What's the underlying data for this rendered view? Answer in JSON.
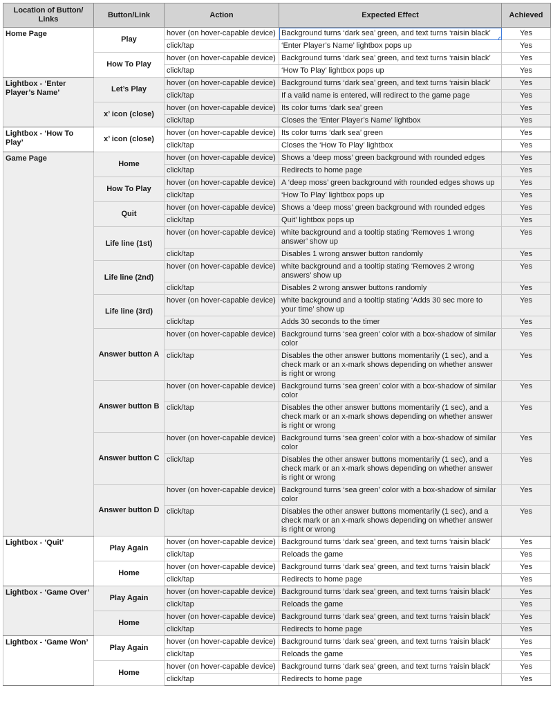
{
  "headers": [
    "Location of Button/ Links",
    "Button/Link",
    "Action",
    "Expected Effect",
    "Achieved"
  ],
  "groups": [
    {
      "location": "Home Page",
      "buttons": [
        {
          "name": "Play",
          "rows": [
            {
              "action": "hover (on hover-capable device)",
              "effect": "Background turns ‘dark sea’ green, and text turns ‘raisin black’",
              "achieved": "Yes"
            },
            {
              "action": "click/tap",
              "effect": "‘Enter Player’s Name’ lightbox pops up",
              "achieved": "Yes"
            }
          ]
        },
        {
          "name": "How To Play",
          "rows": [
            {
              "action": "hover (on hover-capable device)",
              "effect": "Background turns ‘dark sea’ green, and text turns ‘raisin black’",
              "achieved": "Yes"
            },
            {
              "action": "click/tap",
              "effect": "‘How To Play’ lightbox pops up",
              "achieved": "Yes"
            }
          ]
        }
      ]
    },
    {
      "location": "Lightbox - ‘Enter Player’s Name’",
      "buttons": [
        {
          "name": "Let’s Play",
          "rows": [
            {
              "action": "hover (on hover-capable device)",
              "effect": "Background turns ‘dark sea’ green, and text turns ‘raisin black’",
              "achieved": "Yes"
            },
            {
              "action": "click/tap",
              "effect": "If a valid name is entered, will redirect to the game page",
              "achieved": "Yes"
            }
          ]
        },
        {
          "name": "x’ icon (close)",
          "rows": [
            {
              "action": "hover (on hover-capable device)",
              "effect": "Its color turns ‘dark sea’ green",
              "achieved": "Yes"
            },
            {
              "action": "click/tap",
              "effect": "Closes the ‘Enter Player’s Name’ lightbox",
              "achieved": "Yes"
            }
          ]
        }
      ]
    },
    {
      "location": "Lightbox - ‘How To Play’",
      "buttons": [
        {
          "name": "x’ icon (close)",
          "rows": [
            {
              "action": "hover (on hover-capable device)",
              "effect": "Its color turns ‘dark sea’ green",
              "achieved": "Yes"
            },
            {
              "action": "click/tap",
              "effect": "Closes the ‘How To Play’ lightbox",
              "achieved": "Yes"
            }
          ]
        }
      ]
    },
    {
      "location": "Game Page",
      "buttons": [
        {
          "name": "Home",
          "rows": [
            {
              "action": "hover (on hover-capable device)",
              "effect": "Shows a ‘deep moss’ green background with rounded edges",
              "achieved": "Yes"
            },
            {
              "action": "click/tap",
              "effect": "Redirects to home page",
              "achieved": "Yes"
            }
          ]
        },
        {
          "name": "How To Play",
          "rows": [
            {
              "action": "hover (on hover-capable device)",
              "effect": "A ‘deep moss’ green background with rounded edges shows up",
              "achieved": "Yes"
            },
            {
              "action": "click/tap",
              "effect": "‘How To Play’ lightbox pops up",
              "achieved": "Yes"
            }
          ]
        },
        {
          "name": "Quit",
          "rows": [
            {
              "action": "hover (on hover-capable device)",
              "effect": "Shows a ‘deep moss’ green background with rounded edges",
              "achieved": "Yes"
            },
            {
              "action": "click/tap",
              "effect": "Quit’ lightbox pops up",
              "achieved": "Yes"
            }
          ]
        },
        {
          "name": "Life line (1st)",
          "rows": [
            {
              "action": "hover (on hover-capable device)",
              "effect": "white background and a tooltip stating ‘Removes 1 wrong answer’ show up",
              "achieved": "Yes"
            },
            {
              "action": "click/tap",
              "effect": "Disables 1 wrong answer button randomly",
              "achieved": "Yes"
            }
          ]
        },
        {
          "name": "Life line (2nd)",
          "rows": [
            {
              "action": "hover (on hover-capable device)",
              "effect": "white background and a tooltip stating ‘Removes 2 wrong answers’ show up",
              "achieved": "Yes"
            },
            {
              "action": "click/tap",
              "effect": "Disables 2 wrong answer buttons randomly",
              "achieved": "Yes"
            }
          ]
        },
        {
          "name": "Life line (3rd)",
          "rows": [
            {
              "action": "hover (on hover-capable device)",
              "effect": "white background and a tooltip stating ‘Adds 30 sec more to your time’ show up",
              "achieved": "Yes"
            },
            {
              "action": "click/tap",
              "effect": "Adds 30 seconds to the timer",
              "achieved": "Yes"
            }
          ]
        },
        {
          "name": "Answer button A",
          "rows": [
            {
              "action": "hover (on hover-capable device)",
              "effect": "Background turns ‘sea green’ color with a box-shadow of similar color",
              "achieved": "Yes"
            },
            {
              "action": "click/tap",
              "effect": "Disables the other answer buttons momentarily (1 sec), and a check mark or an x-mark shows depending on whether answer is right or wrong",
              "achieved": "Yes"
            }
          ]
        },
        {
          "name": "Answer button B",
          "rows": [
            {
              "action": "hover (on hover-capable device)",
              "effect": "Background turns ‘sea green’ color with a box-shadow of similar color",
              "achieved": "Yes"
            },
            {
              "action": "click/tap",
              "effect": "Disables the other answer buttons momentarily (1 sec), and a check mark or an x-mark shows depending on whether answer is right or wrong",
              "achieved": "Yes"
            }
          ]
        },
        {
          "name": "Answer button C",
          "rows": [
            {
              "action": "hover (on hover-capable device)",
              "effect": "Background turns ‘sea green’ color with a box-shadow of similar color",
              "achieved": "Yes"
            },
            {
              "action": "click/tap",
              "effect": "Disables the other answer buttons momentarily (1 sec), and a check mark or an x-mark shows depending on whether answer is right or wrong",
              "achieved": "Yes"
            }
          ]
        },
        {
          "name": "Answer button D",
          "rows": [
            {
              "action": "hover (on hover-capable device)",
              "effect": "Background turns ‘sea green’ color with a box-shadow of similar color",
              "achieved": "Yes"
            },
            {
              "action": "click/tap",
              "effect": "Disables the other answer buttons momentarily (1 sec), and a check mark or an x-mark shows depending on whether answer is right or wrong",
              "achieved": "Yes"
            }
          ]
        }
      ]
    },
    {
      "location": "Lightbox - ‘Quit’",
      "buttons": [
        {
          "name": "Play Again",
          "rows": [
            {
              "action": "hover (on hover-capable device)",
              "effect": "Background turns ‘dark sea’ green, and text turns ‘raisin black’",
              "achieved": "Yes"
            },
            {
              "action": "click/tap",
              "effect": "Reloads the game",
              "achieved": "Yes"
            }
          ]
        },
        {
          "name": "Home",
          "rows": [
            {
              "action": "hover (on hover-capable device)",
              "effect": "Background turns ‘dark sea’ green, and text turns ‘raisin black’",
              "achieved": "Yes"
            },
            {
              "action": "click/tap",
              "effect": "Redirects to home page",
              "achieved": "Yes"
            }
          ]
        }
      ]
    },
    {
      "location": "Lightbox - ‘Game Over’",
      "buttons": [
        {
          "name": "Play Again",
          "rows": [
            {
              "action": "hover (on hover-capable device)",
              "effect": "Background turns ‘dark sea’ green, and text turns ‘raisin black’",
              "achieved": "Yes"
            },
            {
              "action": "click/tap",
              "effect": "Reloads the game",
              "achieved": "Yes"
            }
          ]
        },
        {
          "name": "Home",
          "rows": [
            {
              "action": "hover (on hover-capable device)",
              "effect": "Background turns ‘dark sea’ green, and text turns ‘raisin black’",
              "achieved": "Yes"
            },
            {
              "action": "click/tap",
              "effect": "Redirects to home page",
              "achieved": "Yes"
            }
          ]
        }
      ]
    },
    {
      "location": "Lightbox - ‘Game Won’",
      "buttons": [
        {
          "name": "Play Again",
          "rows": [
            {
              "action": "hover (on hover-capable device)",
              "effect": "Background turns ‘dark sea’ green, and text turns ‘raisin black’",
              "achieved": "Yes"
            },
            {
              "action": "click/tap",
              "effect": "Reloads the game",
              "achieved": "Yes"
            }
          ]
        },
        {
          "name": "Home",
          "rows": [
            {
              "action": "hover (on hover-capable device)",
              "effect": "Background turns ‘dark sea’ green, and text turns ‘raisin black’",
              "achieved": "Yes"
            },
            {
              "action": "click/tap",
              "effect": "Redirects to home page",
              "achieved": "Yes"
            }
          ]
        }
      ]
    }
  ]
}
